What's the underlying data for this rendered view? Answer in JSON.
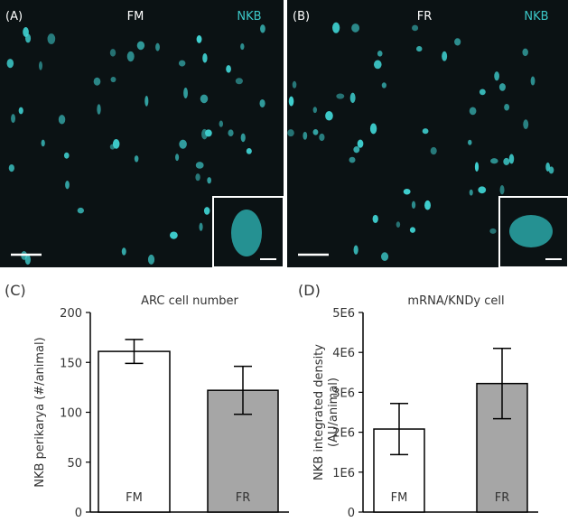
{
  "images": [
    {
      "panel_label": "(A)",
      "condition": "FM",
      "stain": "NKB"
    },
    {
      "panel_label": "(B)",
      "condition": "FR",
      "stain": "NKB"
    }
  ],
  "chart_data": [
    {
      "type": "bar",
      "panel_label": "(C)",
      "title": "ARC cell number",
      "y_label": [
        "NKB perikarya (#/animal)"
      ],
      "categories": [
        "FM",
        "FR"
      ],
      "values": [
        161,
        122
      ],
      "errors": [
        12,
        24
      ],
      "colors": [
        "#ffffff",
        "#a6a6a6"
      ],
      "ylim": [
        0,
        200
      ],
      "yticks": [
        0,
        50,
        100,
        150,
        200
      ]
    },
    {
      "type": "bar",
      "panel_label": "(D)",
      "title": "mRNA/KNDy cell",
      "y_label": [
        "NKB integrated density",
        "(AU/animal)"
      ],
      "categories": [
        "FM",
        "FR"
      ],
      "values": [
        2080000,
        3220000
      ],
      "errors": [
        640000,
        880000
      ],
      "colors": [
        "#ffffff",
        "#a6a6a6"
      ],
      "ylim": [
        0,
        5000000
      ],
      "yticks": [
        0,
        {
          "value": 1000000,
          "label": "1E6"
        },
        {
          "value": 2000000,
          "label": "2E6"
        },
        {
          "value": 3000000,
          "label": "3E6"
        },
        {
          "value": 4000000,
          "label": "4E6"
        },
        {
          "value": 5000000,
          "label": "5E6"
        }
      ]
    }
  ]
}
